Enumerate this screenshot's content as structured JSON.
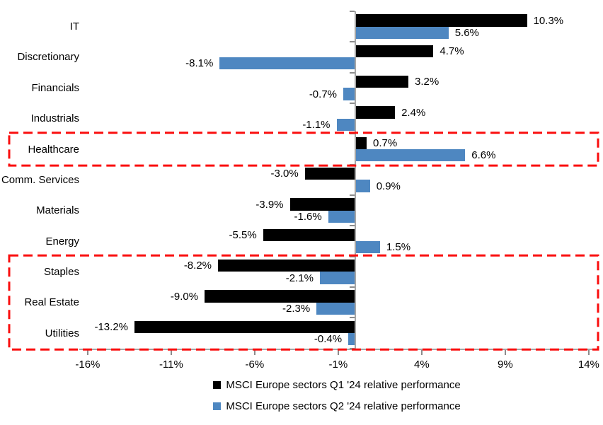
{
  "chart_data": {
    "type": "bar",
    "orientation": "horizontal",
    "categories": [
      "IT",
      "Discretionary",
      "Financials",
      "Industrials",
      "Healthcare",
      "Comm. Services",
      "Materials",
      "Energy",
      "Staples",
      "Real Estate",
      "Utilities"
    ],
    "series": [
      {
        "name": "MSCI Europe sectors Q1 '24 relative performance",
        "color": "#000000",
        "values": [
          10.3,
          4.7,
          3.2,
          2.4,
          0.7,
          -3.0,
          -3.9,
          -5.5,
          -8.2,
          -9.0,
          -13.2
        ],
        "labels": [
          "10.3%",
          "4.7%",
          "3.2%",
          "2.4%",
          "0.7%",
          "-3.0%",
          "-3.9%",
          "-5.5%",
          "-8.2%",
          "-9.0%",
          "-13.2%"
        ]
      },
      {
        "name": "MSCI Europe sectors Q2 '24 relative performance",
        "color": "#4e87c1",
        "values": [
          5.6,
          -8.1,
          -0.7,
          -1.1,
          6.6,
          0.9,
          -1.6,
          1.5,
          -2.1,
          -2.3,
          -0.4
        ],
        "labels": [
          "5.6%",
          "-8.1%",
          "-0.7%",
          "-1.1%",
          "6.6%",
          "0.9%",
          "-1.6%",
          "1.5%",
          "-2.1%",
          "-2.3%",
          "-0.4%"
        ]
      }
    ],
    "x_axis": {
      "ticks": [
        "-16%",
        "-11%",
        "-6%",
        "-1%",
        "4%",
        "9%",
        "14%"
      ],
      "tick_values": [
        -16,
        -11,
        -6,
        -1,
        4,
        9,
        14
      ],
      "min": -16,
      "max": 14,
      "unit": "%"
    },
    "axis_color": "#a6a6a6",
    "highlight_color": "#fa0d0d",
    "highlights": [
      {
        "type": "dashed-box",
        "sectors": [
          "Healthcare"
        ]
      },
      {
        "type": "dashed-box",
        "sectors": [
          "Staples",
          "Real Estate",
          "Utilities"
        ]
      }
    ],
    "legend_position": "bottom",
    "grid": false
  }
}
